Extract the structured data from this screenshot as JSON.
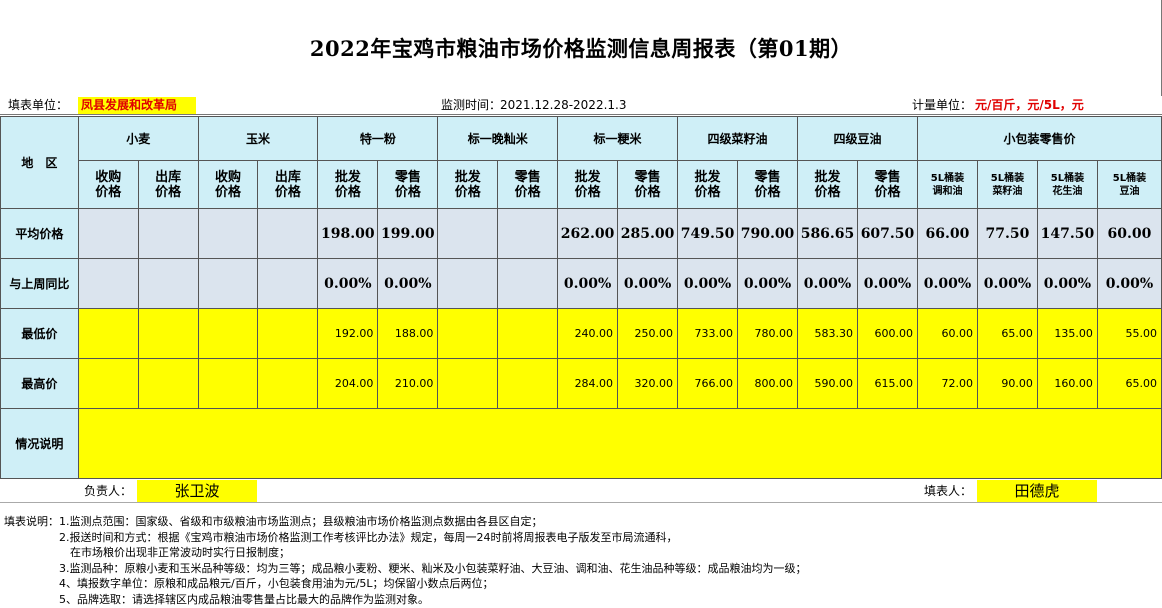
{
  "title": "2022年宝鸡市粮油市场价格监测信息周报表（第01期）",
  "info": {
    "unit_label": "填表单位：",
    "unit_value": "凤县发展和改革局",
    "period_label": "监测时间：",
    "period_value": "2021.12.28-2022.1.3",
    "measure_label": "计量单位：",
    "measure_value": "元/百斤，元/5L，元"
  },
  "header": {
    "region": "地　区",
    "groups": [
      "小麦",
      "玉米",
      "特一粉",
      "标一晚籼米",
      "标一粳米",
      "四级菜籽油",
      "四级豆油",
      "小包装零售价"
    ],
    "sub": [
      [
        "收购",
        "价格"
      ],
      [
        "出库",
        "价格"
      ],
      [
        "收购",
        "价格"
      ],
      [
        "出库",
        "价格"
      ],
      [
        "批发",
        "价格"
      ],
      [
        "零售",
        "价格"
      ],
      [
        "批发",
        "价格"
      ],
      [
        "零售",
        "价格"
      ],
      [
        "批发",
        "价格"
      ],
      [
        "零售",
        "价格"
      ],
      [
        "批发",
        "价格"
      ],
      [
        "零售",
        "价格"
      ],
      [
        "批发",
        "价格"
      ],
      [
        "零售",
        "价格"
      ],
      [
        "5L桶装",
        "调和油"
      ],
      [
        "5L桶装",
        "菜籽油"
      ],
      [
        "5L桶装",
        "花生油"
      ],
      [
        "5L桶装",
        "豆油"
      ]
    ]
  },
  "rows": {
    "avg": {
      "label": "平均价格",
      "values": [
        "",
        "",
        "",
        "",
        "198.00",
        "199.00",
        "",
        "",
        "262.00",
        "285.00",
        "749.50",
        "790.00",
        "586.65",
        "607.50",
        "66.00",
        "77.50",
        "147.50",
        "60.00"
      ]
    },
    "cmp": {
      "label": "与上周同比",
      "values": [
        "",
        "",
        "",
        "",
        "0.00%",
        "0.00%",
        "",
        "",
        "0.00%",
        "0.00%",
        "0.00%",
        "0.00%",
        "0.00%",
        "0.00%",
        "0.00%",
        "0.00%",
        "0.00%",
        "0.00%"
      ]
    },
    "min": {
      "label": "最低价",
      "values": [
        "",
        "",
        "",
        "",
        "192.00",
        "188.00",
        "",
        "",
        "240.00",
        "250.00",
        "733.00",
        "780.00",
        "583.30",
        "600.00",
        "60.00",
        "65.00",
        "135.00",
        "55.00"
      ]
    },
    "max": {
      "label": "最高价",
      "values": [
        "",
        "",
        "",
        "",
        "204.00",
        "210.00",
        "",
        "",
        "284.00",
        "320.00",
        "766.00",
        "800.00",
        "590.00",
        "615.00",
        "72.00",
        "90.00",
        "160.00",
        "65.00"
      ]
    },
    "note": {
      "label": "情况说明"
    }
  },
  "sign": {
    "owner_label": "负责人：",
    "owner_value": "张卫波",
    "filler_label": "填表人：",
    "filler_value": "田德虎"
  },
  "notes": [
    "填表说明：1.监测点范围：国家级、省级和市级粮油市场监测点；县级粮油市场价格监测点数据由各县区自定；",
    "　　　　　2.报送时间和方式：根据《宝鸡市粮油市场价格监测工作考核评比办法》规定，每周一24时前将周报表电子版发至市局流通科，",
    "　　　　　　在市场粮价出现非正常波动时实行日报制度；",
    "　　　　　3.监测品种：原粮小麦和玉米品种等级：均为三等；成品粮小麦粉、粳米、籼米及小包装菜籽油、大豆油、调和油、花生油品种等级：成品粮油均为一级；",
    "　　　　　4、填报数字单位：原粮和成品粮元/百斤，小包装食用油为元/5L；均保留小数点后两位；",
    "　　　　　5、品牌选取：请选择辖区内成品粮油零售量占比最大的品牌作为监测对象。"
  ]
}
